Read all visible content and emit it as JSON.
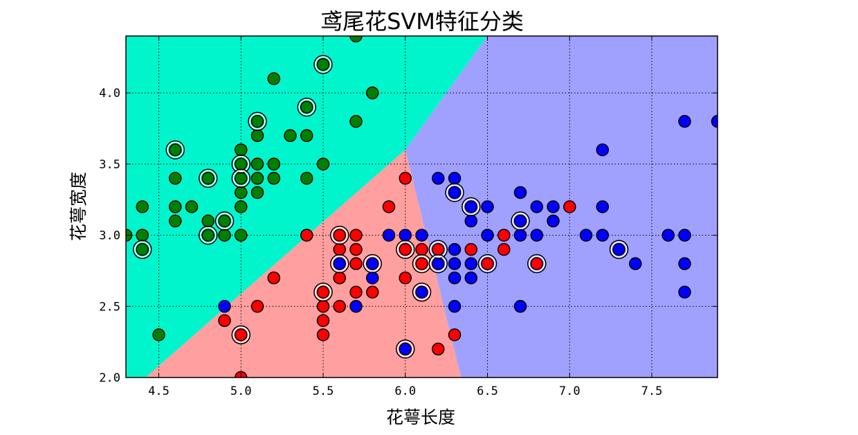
{
  "chart_data": {
    "type": "scatter",
    "title": "鸢尾花SVM特征分类",
    "xlabel": "花萼长度",
    "ylabel": "花萼宽度",
    "xlim": [
      4.3,
      7.9
    ],
    "ylim": [
      2.0,
      4.4
    ],
    "xticks": [
      "4.5",
      "5.0",
      "5.5",
      "6.0",
      "6.5",
      "7.0",
      "7.5"
    ],
    "yticks": [
      "2.0",
      "2.5",
      "3.0",
      "3.5",
      "4.0"
    ],
    "grid": true,
    "regions": [
      {
        "class": "green",
        "color": "#00f5cc"
      },
      {
        "class": "red",
        "color": "#ff9f9f"
      },
      {
        "class": "blue",
        "color": "#a0a0ff"
      }
    ],
    "series": [
      {
        "class": "green",
        "color": "#008000",
        "points": [
          [
            4.3,
            3.0
          ],
          [
            4.4,
            3.2
          ],
          [
            4.4,
            3.0
          ],
          [
            4.4,
            2.9
          ],
          [
            4.5,
            2.3
          ],
          [
            4.6,
            3.6
          ],
          [
            4.6,
            3.4
          ],
          [
            4.6,
            3.2
          ],
          [
            4.6,
            3.1
          ],
          [
            4.7,
            3.2
          ],
          [
            4.8,
            3.4
          ],
          [
            4.8,
            3.1
          ],
          [
            4.8,
            3.0
          ],
          [
            4.9,
            3.1
          ],
          [
            4.9,
            3.0
          ],
          [
            5.0,
            3.6
          ],
          [
            5.0,
            3.5
          ],
          [
            5.0,
            3.4
          ],
          [
            5.0,
            3.3
          ],
          [
            5.0,
            3.2
          ],
          [
            5.0,
            3.0
          ],
          [
            5.1,
            3.8
          ],
          [
            5.1,
            3.7
          ],
          [
            5.1,
            3.5
          ],
          [
            5.1,
            3.4
          ],
          [
            5.1,
            3.3
          ],
          [
            5.2,
            4.1
          ],
          [
            5.2,
            3.5
          ],
          [
            5.2,
            3.4
          ],
          [
            5.3,
            3.7
          ],
          [
            5.4,
            3.9
          ],
          [
            5.4,
            3.7
          ],
          [
            5.4,
            3.4
          ],
          [
            5.5,
            4.2
          ],
          [
            5.5,
            3.5
          ],
          [
            5.7,
            4.4
          ],
          [
            5.7,
            3.8
          ],
          [
            5.8,
            4.0
          ]
        ]
      },
      {
        "class": "red",
        "color": "#ff0000",
        "points": [
          [
            4.9,
            2.4
          ],
          [
            5.0,
            2.3
          ],
          [
            5.0,
            2.0
          ],
          [
            5.1,
            2.5
          ],
          [
            5.2,
            2.7
          ],
          [
            5.4,
            3.0
          ],
          [
            5.5,
            2.6
          ],
          [
            5.5,
            2.5
          ],
          [
            5.5,
            2.4
          ],
          [
            5.5,
            2.3
          ],
          [
            5.6,
            3.0
          ],
          [
            5.6,
            2.9
          ],
          [
            5.6,
            2.7
          ],
          [
            5.6,
            2.5
          ],
          [
            5.7,
            3.0
          ],
          [
            5.7,
            2.9
          ],
          [
            5.7,
            2.8
          ],
          [
            5.7,
            2.6
          ],
          [
            5.8,
            2.6
          ],
          [
            5.9,
            3.2
          ],
          [
            6.0,
            3.4
          ],
          [
            6.0,
            2.9
          ],
          [
            6.0,
            2.7
          ],
          [
            6.1,
            2.9
          ],
          [
            6.1,
            2.8
          ],
          [
            6.2,
            2.9
          ],
          [
            6.2,
            2.2
          ],
          [
            6.3,
            2.3
          ],
          [
            6.4,
            2.9
          ],
          [
            6.5,
            2.8
          ],
          [
            6.6,
            3.0
          ],
          [
            6.6,
            2.9
          ],
          [
            6.8,
            2.8
          ],
          [
            7.0,
            3.2
          ]
        ]
      },
      {
        "class": "blue",
        "color": "#0000ff",
        "points": [
          [
            4.9,
            2.5
          ],
          [
            5.6,
            2.8
          ],
          [
            5.7,
            2.5
          ],
          [
            5.8,
            2.8
          ],
          [
            5.8,
            2.7
          ],
          [
            5.9,
            3.0
          ],
          [
            6.0,
            3.0
          ],
          [
            6.0,
            2.2
          ],
          [
            6.1,
            3.0
          ],
          [
            6.1,
            2.6
          ],
          [
            6.2,
            3.4
          ],
          [
            6.2,
            2.8
          ],
          [
            6.3,
            3.4
          ],
          [
            6.3,
            3.3
          ],
          [
            6.3,
            2.9
          ],
          [
            6.3,
            2.8
          ],
          [
            6.3,
            2.7
          ],
          [
            6.3,
            2.5
          ],
          [
            6.4,
            3.2
          ],
          [
            6.4,
            3.1
          ],
          [
            6.4,
            2.8
          ],
          [
            6.4,
            2.7
          ],
          [
            6.5,
            3.2
          ],
          [
            6.5,
            3.0
          ],
          [
            6.7,
            3.3
          ],
          [
            6.7,
            3.1
          ],
          [
            6.7,
            3.0
          ],
          [
            6.7,
            2.5
          ],
          [
            6.8,
            3.2
          ],
          [
            6.8,
            3.0
          ],
          [
            6.9,
            3.2
          ],
          [
            6.9,
            3.1
          ],
          [
            7.1,
            3.0
          ],
          [
            7.2,
            3.6
          ],
          [
            7.2,
            3.2
          ],
          [
            7.2,
            3.0
          ],
          [
            7.3,
            2.9
          ],
          [
            7.4,
            2.8
          ],
          [
            7.6,
            3.0
          ],
          [
            7.7,
            3.8
          ],
          [
            7.7,
            3.0
          ],
          [
            7.7,
            2.8
          ],
          [
            7.7,
            2.6
          ],
          [
            7.9,
            3.8
          ]
        ]
      }
    ],
    "support_vectors": [
      [
        4.4,
        2.9
      ],
      [
        4.6,
        3.6
      ],
      [
        4.8,
        3.4
      ],
      [
        4.8,
        3.0
      ],
      [
        4.9,
        3.1
      ],
      [
        5.0,
        3.5
      ],
      [
        5.0,
        3.4
      ],
      [
        5.0,
        2.3
      ],
      [
        5.1,
        3.8
      ],
      [
        5.4,
        3.9
      ],
      [
        5.5,
        4.2
      ],
      [
        5.5,
        2.6
      ],
      [
        5.6,
        3.0
      ],
      [
        5.6,
        2.8
      ],
      [
        5.8,
        2.8
      ],
      [
        6.0,
        2.9
      ],
      [
        6.0,
        2.2
      ],
      [
        6.1,
        2.8
      ],
      [
        6.1,
        2.6
      ],
      [
        6.2,
        2.9
      ],
      [
        6.2,
        2.8
      ],
      [
        6.3,
        3.3
      ],
      [
        6.4,
        3.2
      ],
      [
        6.5,
        2.8
      ],
      [
        6.7,
        3.1
      ],
      [
        6.8,
        2.8
      ],
      [
        7.3,
        2.9
      ]
    ]
  }
}
